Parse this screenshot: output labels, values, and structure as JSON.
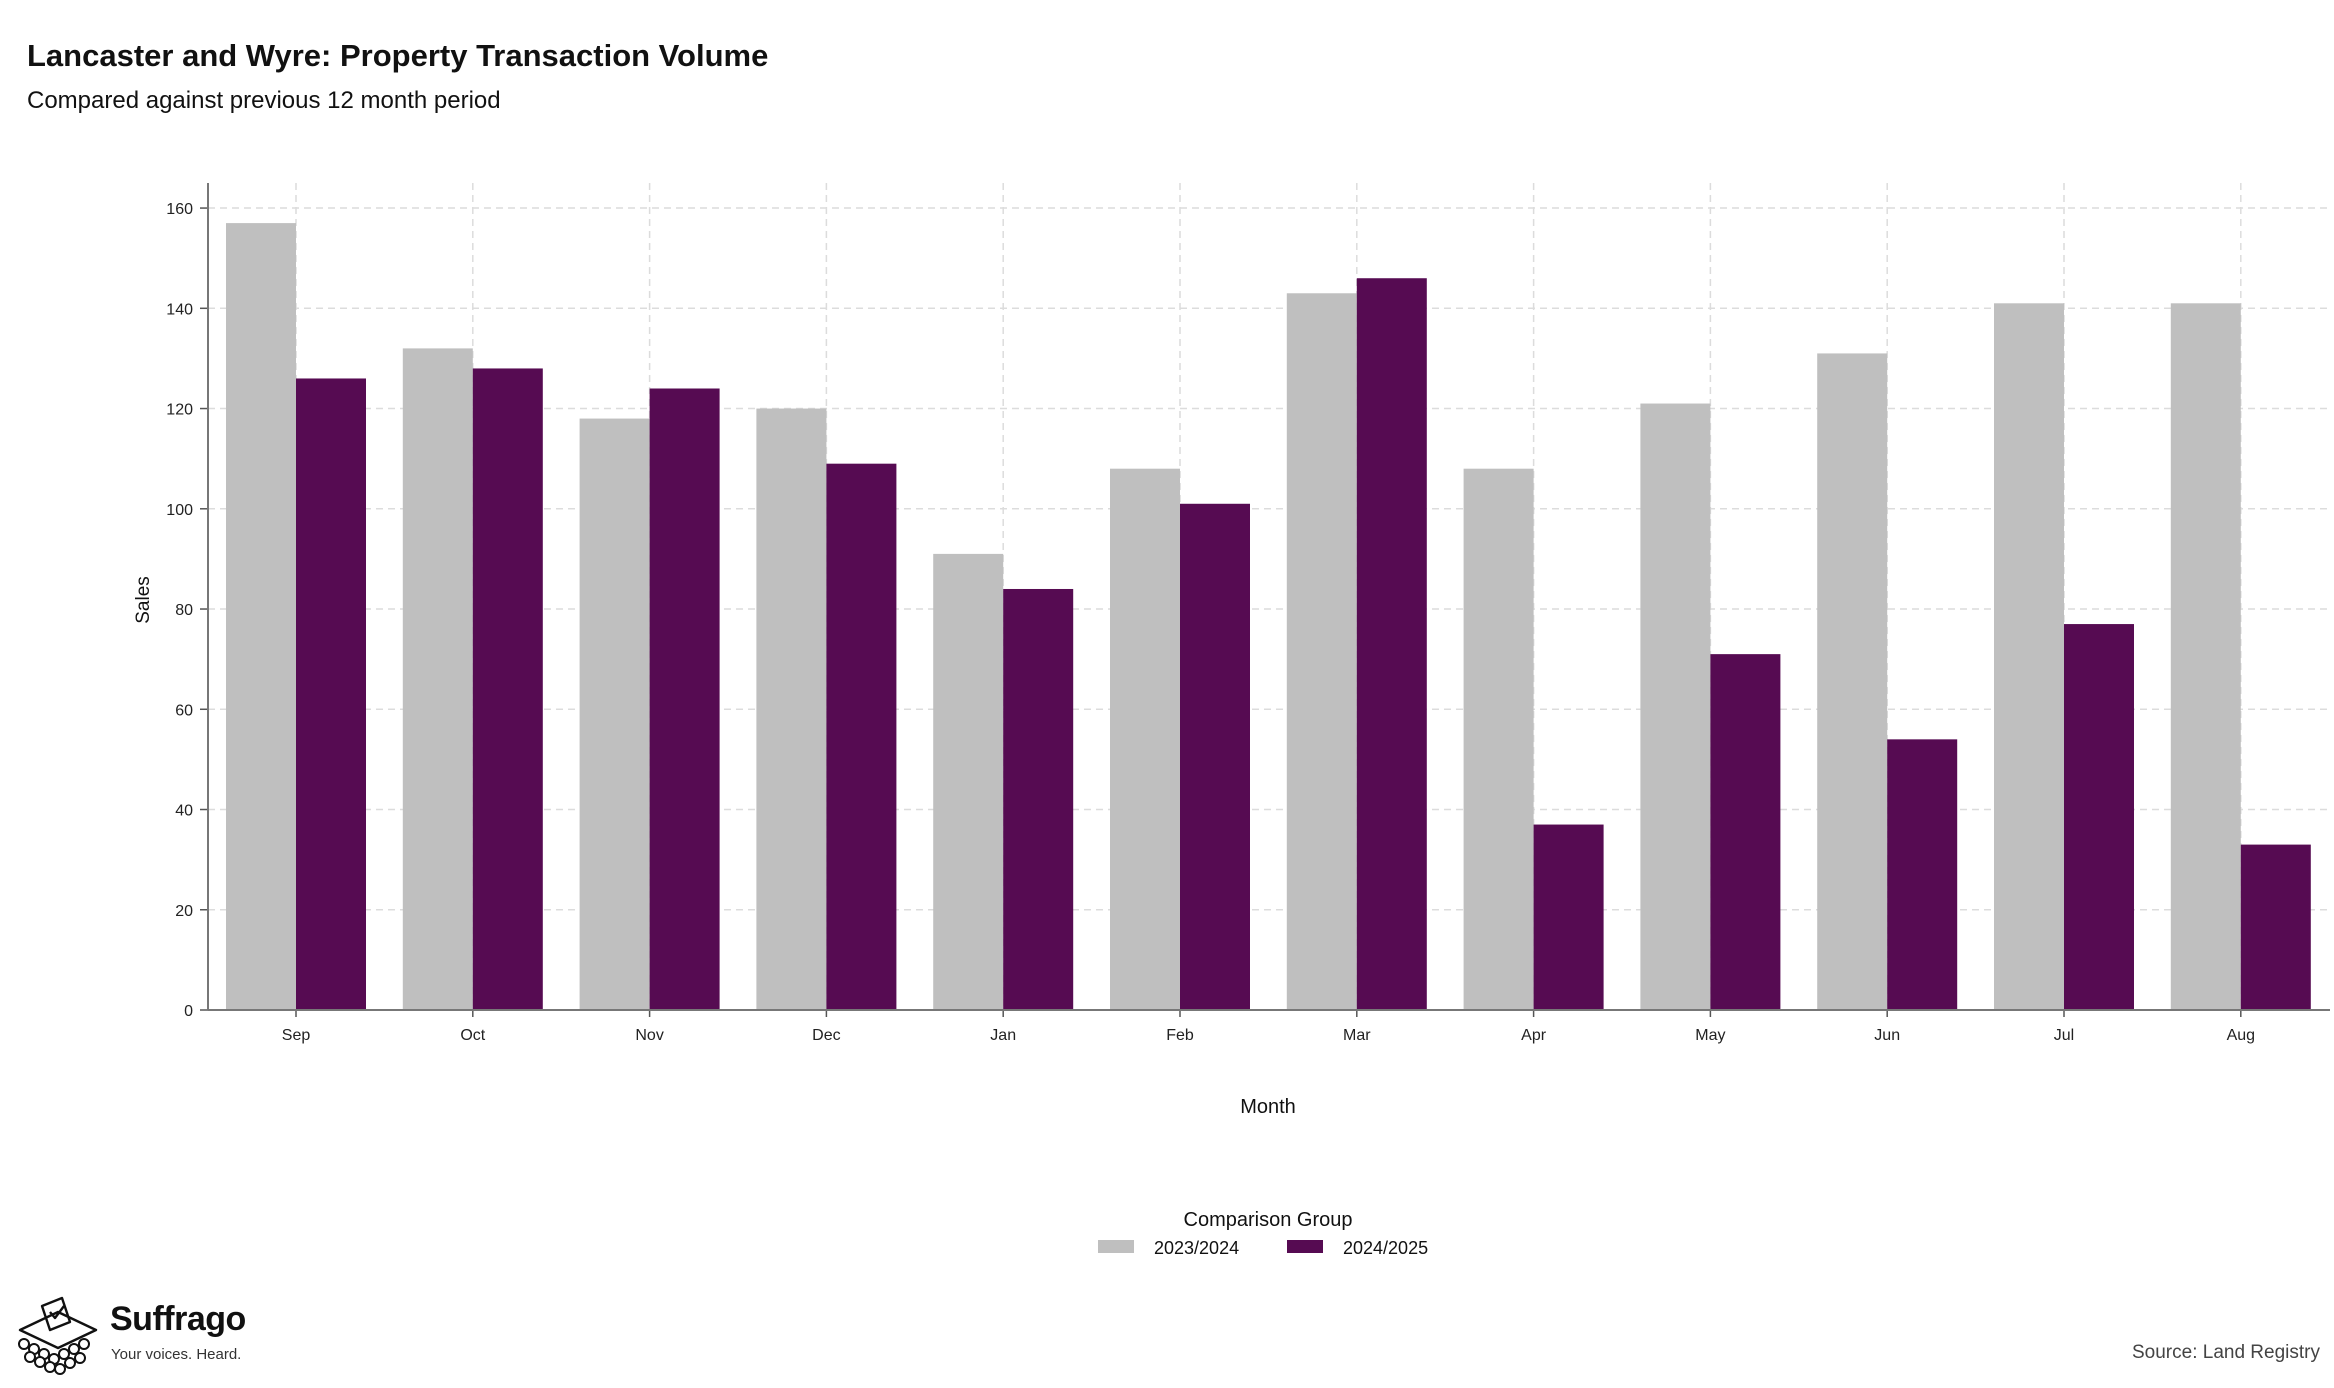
{
  "header": {
    "title": "Lancaster and Wyre: Property Transaction Volume",
    "subtitle": "Compared against previous 12 month period"
  },
  "chart_data": {
    "type": "bar",
    "xlabel": "Month",
    "ylabel": "Sales",
    "ylim": [
      0,
      165
    ],
    "yticks": [
      0,
      20,
      40,
      60,
      80,
      100,
      120,
      140,
      160
    ],
    "grid": true,
    "legend_title": "Comparison Group",
    "legend_position": "bottom",
    "categories": [
      "Sep",
      "Oct",
      "Nov",
      "Dec",
      "Jan",
      "Feb",
      "Mar",
      "Apr",
      "May",
      "Jun",
      "Jul",
      "Aug"
    ],
    "series": [
      {
        "name": "2023/2024",
        "color": "#bfbfbf",
        "values": [
          157,
          132,
          118,
          120,
          91,
          108,
          143,
          108,
          121,
          131,
          141,
          141
        ]
      },
      {
        "name": "2024/2025",
        "color": "#560b52",
        "values": [
          126,
          128,
          124,
          109,
          84,
          101,
          146,
          37,
          71,
          54,
          77,
          33
        ]
      }
    ]
  },
  "branding": {
    "name": "Suffrago",
    "tagline": "Your voices. Heard.",
    "logo_icon": "ballot-box-icon"
  },
  "footer": {
    "source": "Source: Land Registry"
  }
}
